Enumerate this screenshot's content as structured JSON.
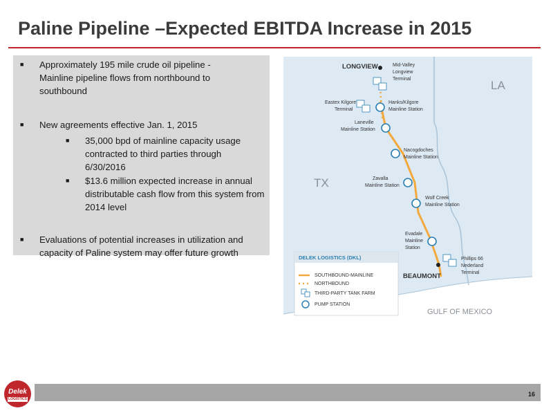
{
  "title": "Paline Pipeline –Expected EBITDA Increase in 2015",
  "bullets": {
    "b1": {
      "line1": "Approximately 195 mile crude oil pipeline -",
      "line2": "Mainline pipeline flows from northbound to",
      "line3": "southbound"
    },
    "b2": {
      "line1": "New agreements effective Jan. 1, 2015"
    },
    "b2a": {
      "line1": "35,000 bpd of mainline capacity usage",
      "line2": "contracted to third parties through",
      "line3": "6/30/2016"
    },
    "b2b": {
      "line1": "$13.6 million expected increase in annual",
      "line2": "distributable cash flow from this system from",
      "line3": "2014 level"
    },
    "b3": {
      "line1": "Evaluations of potential increases in utilization and",
      "line2": "capacity of Paline system may offer future growth"
    }
  },
  "map": {
    "colors": {
      "water": "#ffffff",
      "land": "#dde9f3",
      "border": "#a9c4d8",
      "pipeline": "#f3a93d",
      "station": "#2a7fb4",
      "city": "#222222"
    },
    "longview": "LONGVIEW",
    "beaumont": "BEAUMONT",
    "state_la": "LA",
    "state_tx": "TX",
    "gulf": "GULF OF MEXICO",
    "mid_valley": {
      "line1": "Mid-Valley",
      "line2": "Longview",
      "line3": "Terminal"
    },
    "eastex": {
      "line1": "Eastex Kilgore",
      "line2": "Terminal"
    },
    "hanks": {
      "line1": "Hanks/Kilgore",
      "line2": "Mainline Station"
    },
    "laneville": {
      "line1": "Laneville",
      "line2": "Mainline Station"
    },
    "nacogdoches": {
      "line1": "Nacogdoches",
      "line2": "Mainline Station"
    },
    "zavalla": {
      "line1": "Zavalla",
      "line2": "Mainline Station"
    },
    "wolf_creek": {
      "line1": "Wolf Creek",
      "line2": "Mainline Station"
    },
    "evadale": {
      "line1": "Evadale",
      "line2": "Mainline",
      "line3": "Station"
    },
    "phillips": {
      "line1": "Phillips 66",
      "line2": "Nederland",
      "line3": "Terminal"
    },
    "legend": {
      "title": "DELEK LOGISTICS (DKL)",
      "southbound": "SOUTHBOUND-MAINLINE",
      "northbound": "NORTHBOUND",
      "tank_farm": "THIRD-PARTY TANK FARM",
      "pump_station": "PUMP STATION"
    }
  },
  "logo": {
    "name": "Delek",
    "sub": "LOGISTICS"
  },
  "page_number": "16"
}
